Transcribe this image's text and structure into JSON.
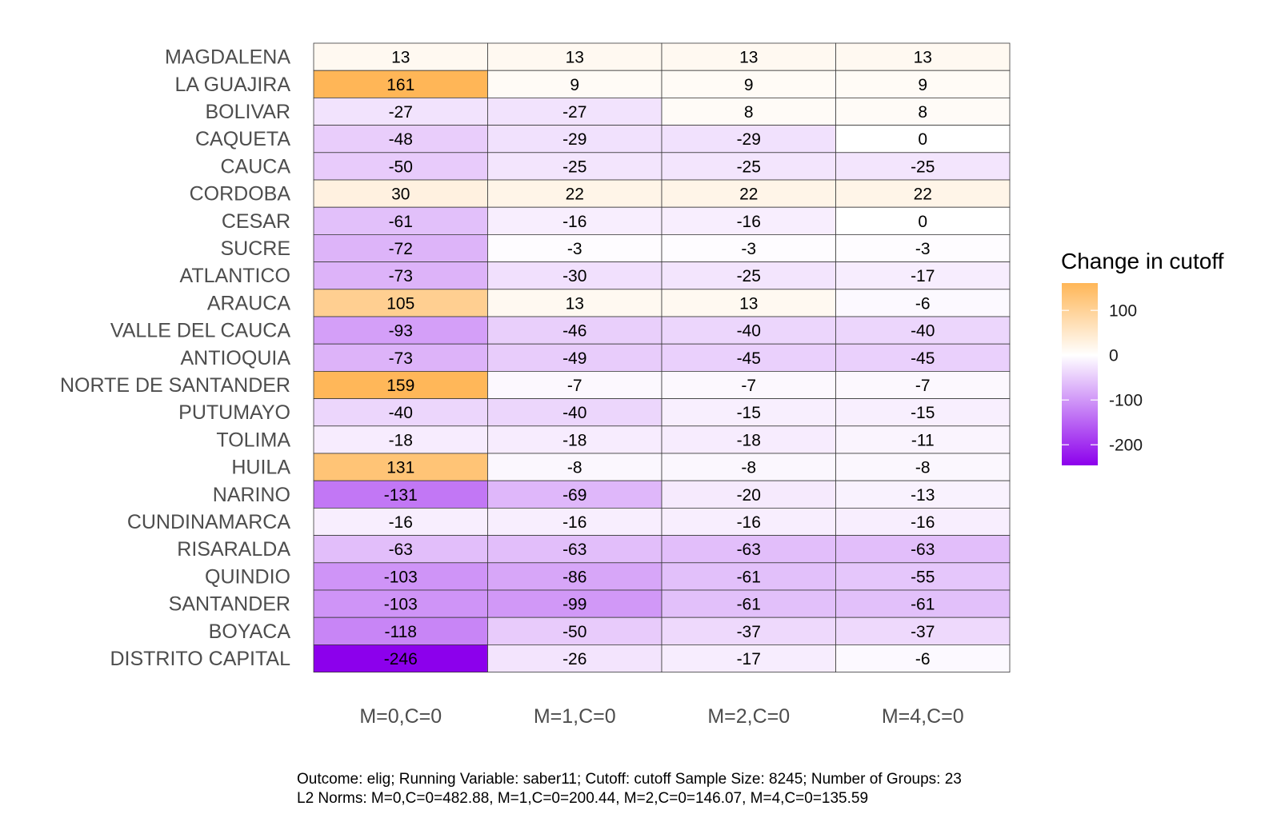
{
  "chart_data": {
    "type": "heatmap",
    "rows": [
      "MAGDALENA",
      "LA GUAJIRA",
      "BOLIVAR",
      "CAQUETA",
      "CAUCA",
      "CORDOBA",
      "CESAR",
      "SUCRE",
      "ATLANTICO",
      "ARAUCA",
      "VALLE DEL CAUCA",
      "ANTIOQUIA",
      "NORTE DE SANTANDER",
      "PUTUMAYO",
      "TOLIMA",
      "HUILA",
      "NARINO",
      "CUNDINAMARCA",
      "RISARALDA",
      "QUINDIO",
      "SANTANDER",
      "BOYACA",
      "DISTRITO CAPITAL"
    ],
    "columns": [
      "M=0,C=0",
      "M=1,C=0",
      "M=2,C=0",
      "M=4,C=0"
    ],
    "values": [
      [
        13,
        13,
        13,
        13
      ],
      [
        161,
        9,
        9,
        9
      ],
      [
        -27,
        -27,
        8,
        8
      ],
      [
        -48,
        -29,
        -29,
        0
      ],
      [
        -50,
        -25,
        -25,
        -25
      ],
      [
        30,
        22,
        22,
        22
      ],
      [
        -61,
        -16,
        -16,
        0
      ],
      [
        -72,
        -3,
        -3,
        -3
      ],
      [
        -73,
        -30,
        -25,
        -17
      ],
      [
        105,
        13,
        13,
        -6
      ],
      [
        -93,
        -46,
        -40,
        -40
      ],
      [
        -73,
        -49,
        -45,
        -45
      ],
      [
        159,
        -7,
        -7,
        -7
      ],
      [
        -40,
        -40,
        -15,
        -15
      ],
      [
        -18,
        -18,
        -18,
        -11
      ],
      [
        131,
        -8,
        -8,
        -8
      ],
      [
        -131,
        -69,
        -20,
        -13
      ],
      [
        -16,
        -16,
        -16,
        -16
      ],
      [
        -63,
        -63,
        -63,
        -63
      ],
      [
        -103,
        -86,
        -61,
        -55
      ],
      [
        -103,
        -99,
        -61,
        -61
      ],
      [
        -118,
        -50,
        -37,
        -37
      ],
      [
        -246,
        -26,
        -17,
        -6
      ]
    ],
    "legend": {
      "title": "Change in cutoff",
      "ticks": [
        100,
        0,
        -100,
        -200
      ],
      "range": [
        -246,
        161
      ],
      "colors": {
        "high": "#FFB657",
        "mid": "#FFFFFF",
        "low": "#8C00EC"
      }
    },
    "caption": [
      "Outcome: elig; Running Variable: saber11; Cutoff: cutoff   Sample Size: 8245; Number of Groups: 23",
      "L2 Norms: M=0,C=0=482.88, M=1,C=0=200.44, M=2,C=0=146.07, M=4,C=0=135.59"
    ]
  }
}
